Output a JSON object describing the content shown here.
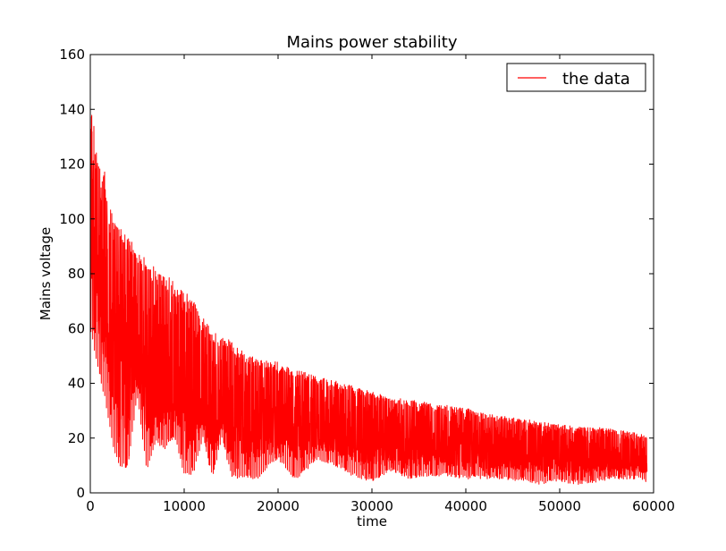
{
  "chart_data": {
    "type": "line",
    "title": "Mains power stability",
    "xlabel": "time",
    "ylabel": "Mains voltage",
    "xlim": [
      0,
      60000
    ],
    "ylim": [
      0,
      160
    ],
    "xticks": [
      0,
      10000,
      20000,
      30000,
      40000,
      50000,
      60000
    ],
    "yticks": [
      0,
      20,
      40,
      60,
      80,
      100,
      120,
      140,
      160
    ],
    "xtick_labels": [
      "0",
      "10000",
      "20000",
      "30000",
      "40000",
      "50000",
      "60000"
    ],
    "ytick_labels": [
      "0",
      "20",
      "40",
      "60",
      "80",
      "100",
      "120",
      "140",
      "160"
    ],
    "grid": false,
    "legend": {
      "position": "top-right",
      "entries": [
        "the data"
      ]
    },
    "series": [
      {
        "name": "the data",
        "color": "#ff0000",
        "x": [
          0,
          500,
          1000,
          1500,
          2000,
          2500,
          3000,
          4000,
          5000,
          6000,
          7000,
          8000,
          9000,
          10000,
          11000,
          12000,
          13000,
          14000,
          15000,
          16000,
          17000,
          18000,
          19000,
          20000,
          22000,
          24000,
          26000,
          28000,
          30000,
          32000,
          34000,
          36000,
          38000,
          40000,
          42000,
          44000,
          46000,
          48000,
          50000,
          52000,
          54000,
          56000,
          58000,
          59300
        ],
        "upper": [
          147,
          131,
          119,
          118,
          105,
          103,
          98,
          95,
          90,
          85,
          82,
          80,
          78,
          74,
          70,
          64,
          60,
          57,
          56,
          53,
          50,
          49,
          48,
          48,
          45,
          43,
          41,
          39,
          37,
          35,
          34,
          33,
          32,
          31,
          29,
          28,
          27,
          26,
          25,
          24,
          24,
          23,
          22,
          21
        ],
        "lower": [
          60,
          50,
          42,
          35,
          25,
          15,
          10,
          9,
          35,
          8,
          18,
          16,
          20,
          6,
          7,
          20,
          5,
          20,
          6,
          5,
          5,
          5,
          10,
          12,
          4,
          12,
          10,
          6,
          4,
          8,
          5,
          6,
          6,
          5,
          5,
          5,
          4,
          3,
          4,
          3,
          4,
          5,
          5,
          4
        ],
        "trend": [
          95,
          80,
          70,
          64,
          58,
          55,
          52,
          48,
          45,
          42,
          40,
          38,
          35,
          33,
          32,
          30,
          29,
          28,
          27,
          26,
          25,
          24,
          24,
          23,
          22,
          21,
          20,
          19.5,
          19,
          18,
          17,
          16.5,
          16,
          15.5,
          15,
          14.5,
          14,
          13.5,
          13,
          13,
          12.5,
          12,
          12,
          12
        ]
      }
    ]
  }
}
